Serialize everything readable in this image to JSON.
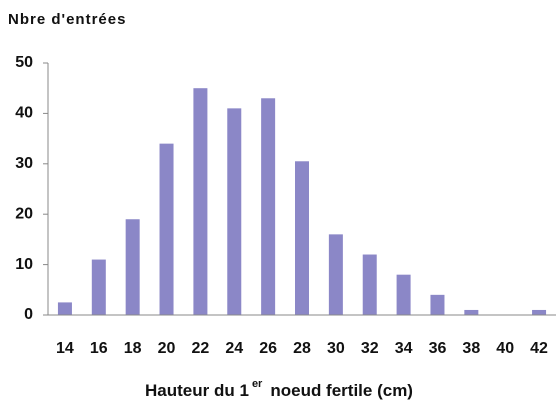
{
  "chart_data": {
    "type": "bar",
    "title": "Nbre d'entrées",
    "x_label": [
      "Hauteur du 1",
      "er",
      "noeud fertile (cm)"
    ],
    "categories": [
      "14",
      "16",
      "18",
      "20",
      "22",
      "24",
      "26",
      "28",
      "30",
      "32",
      "34",
      "36",
      "38",
      "40",
      "42"
    ],
    "values": [
      2.5,
      11,
      19,
      34,
      45,
      41,
      43,
      30.5,
      16,
      12,
      8,
      4,
      1,
      0,
      1
    ],
    "color": "#8b87c7",
    "ylim": [
      0,
      50
    ],
    "yticks": [
      0,
      10,
      20,
      30,
      40,
      50
    ],
    "grid": false
  }
}
